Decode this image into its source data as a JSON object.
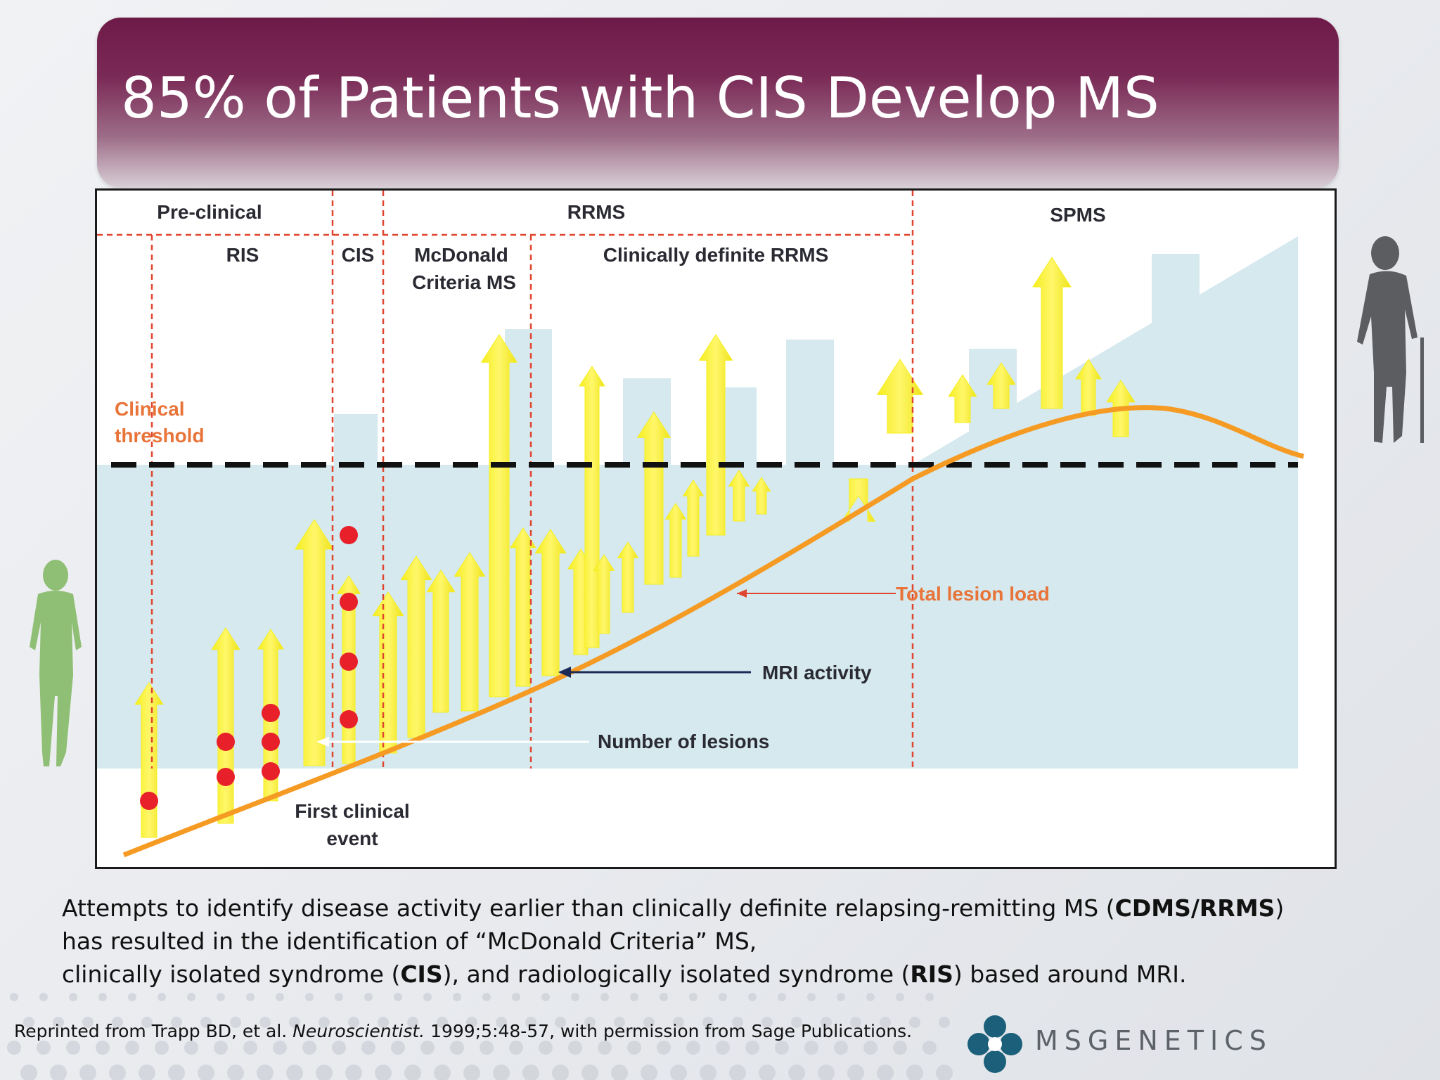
{
  "slide": {
    "title": "85% of Patients with CIS Develop MS"
  },
  "diagram": {
    "phases": {
      "preclinical": "Pre-clinical",
      "rrms": "RRMS",
      "spms": "SPMS"
    },
    "subphases": {
      "ris": "RIS",
      "cis": "CIS",
      "mcdonald_line1": "McDonald",
      "mcdonald_line2": "Criteria MS",
      "clinically_definite": "Clinically definite RRMS"
    },
    "threshold_line1": "Clinical",
    "threshold_line2": "threshold",
    "labels": {
      "total_lesion_load": "Total lesion load",
      "mri_activity": "MRI activity",
      "number_of_lesions": "Number of lesions",
      "first_event_line1": "First clinical",
      "first_event_line2": "event"
    },
    "colors": {
      "arrow": "#f5ee1e",
      "lesion_dot": "#e8202a",
      "lesion_curve": "#f59a23",
      "threshold": "#111111",
      "divider": "#e0452f",
      "shade": "#d5e9ee"
    }
  },
  "body": {
    "line1_a": "Attempts to identify disease activity earlier than clinically definite relapsing-remitting MS (",
    "line1_bold": "CDMS/RRMS",
    "line1_b": ")",
    "line2": "has resulted in the identification of “McDonald Criteria” MS,",
    "line3_a": "clinically isolated syndrome (",
    "line3_bold1": "CIS",
    "line3_b": "), and radiologically isolated syndrome (",
    "line3_bold2": "RIS",
    "line3_c": ") based around MRI."
  },
  "citation": {
    "prefix": "Reprinted from Trapp BD, et al. ",
    "journal": "Neuroscientist.",
    "suffix": " 1999;5:48-57, with permission from Sage Publications."
  },
  "logo": {
    "text": "MSGENETICS"
  }
}
